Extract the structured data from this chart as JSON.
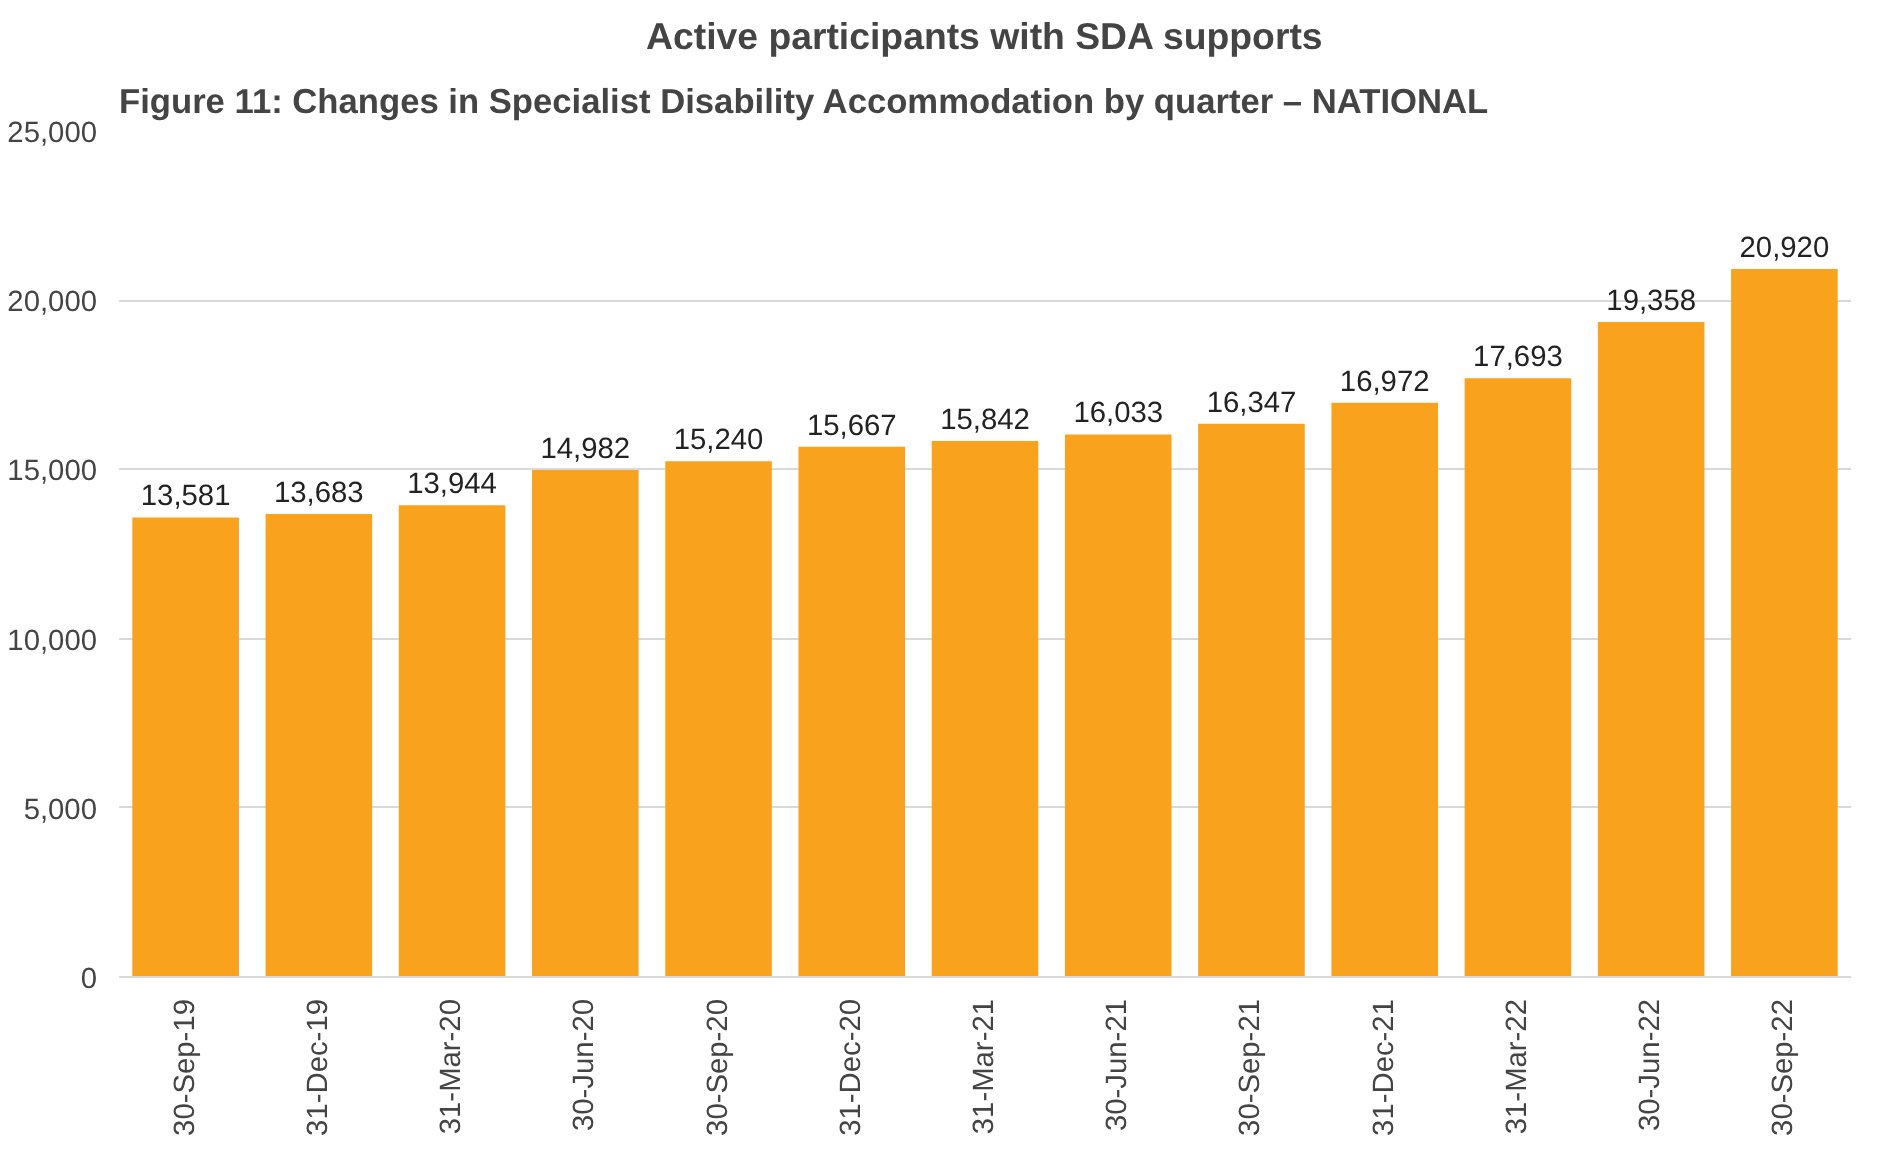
{
  "chart_data": {
    "type": "bar",
    "title": "Active participants with SDA supports",
    "annotations": [
      "Figure 11: Changes in Specialist Disability Accommodation by quarter – NATIONAL"
    ],
    "categories": [
      "30-Sep-19",
      "31-Dec-19",
      "31-Mar-20",
      "30-Jun-20",
      "30-Sep-20",
      "31-Dec-20",
      "31-Mar-21",
      "30-Jun-21",
      "30-Sep-21",
      "31-Dec-21",
      "31-Mar-22",
      "30-Jun-22",
      "30-Sep-22"
    ],
    "values": [
      13581,
      13683,
      13944,
      14982,
      15240,
      15667,
      15842,
      16033,
      16347,
      16972,
      17693,
      19358,
      20920
    ],
    "color": "#f9a21e",
    "ylim": [
      0,
      25000
    ],
    "yticks": [
      {
        "value": 0,
        "label": "0"
      },
      {
        "value": 5000,
        "label": "5,000"
      },
      {
        "value": 10000,
        "label": "10,000"
      },
      {
        "value": 15000,
        "label": "15,000"
      },
      {
        "value": 20000,
        "label": "20,000"
      },
      {
        "value": 25000,
        "label": "25,000"
      }
    ],
    "value_labels": [
      "13,581",
      "13,683",
      "13,944",
      "14,982",
      "15,240",
      "15,667",
      "15,842",
      "16,033",
      "16,347",
      "16,972",
      "17,693",
      "19,358",
      "20,920"
    ],
    "grid": "y"
  }
}
